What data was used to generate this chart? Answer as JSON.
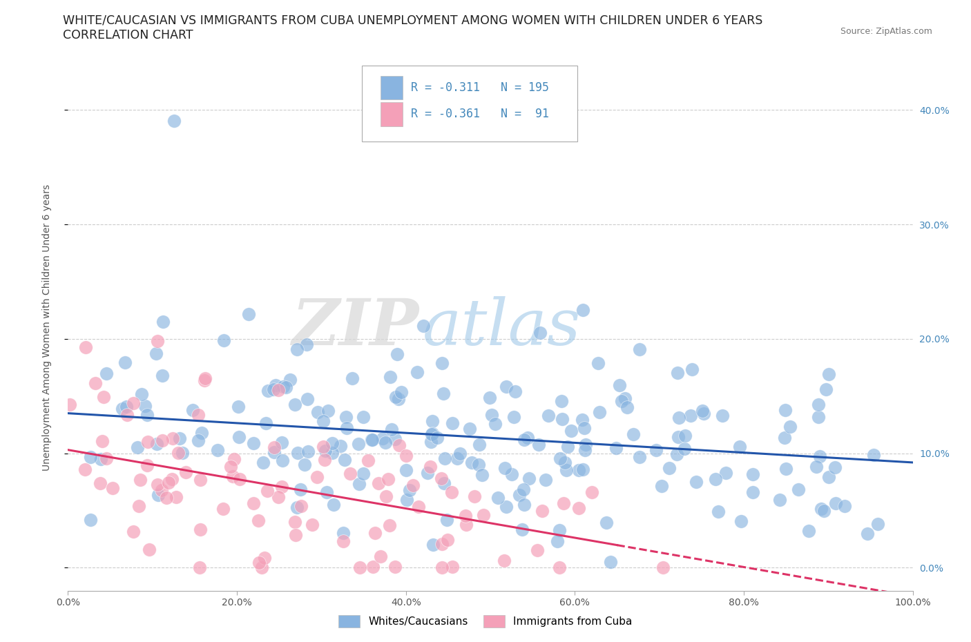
{
  "title": "WHITE/CAUCASIAN VS IMMIGRANTS FROM CUBA UNEMPLOYMENT AMONG WOMEN WITH CHILDREN UNDER 6 YEARS",
  "subtitle": "CORRELATION CHART",
  "source": "Source: ZipAtlas.com",
  "ylabel": "Unemployment Among Women with Children Under 6 years",
  "watermark_zip": "ZIP",
  "watermark_atlas": "atlas",
  "legend_labels": [
    "Whites/Caucasians",
    "Immigrants from Cuba"
  ],
  "legend_r": [
    -0.311,
    -0.361
  ],
  "legend_n": [
    195,
    91
  ],
  "blue_dot_color": "#89B4E0",
  "pink_dot_color": "#F4A0B8",
  "blue_line_color": "#2255AA",
  "pink_line_color": "#DD3366",
  "xlim": [
    0.0,
    1.0
  ],
  "ylim": [
    -0.02,
    0.44
  ],
  "yticks": [
    0.0,
    0.1,
    0.2,
    0.3,
    0.4
  ],
  "xticks": [
    0.0,
    0.2,
    0.4,
    0.6,
    0.8,
    1.0
  ],
  "title_fontsize": 12.5,
  "subtitle_fontsize": 12.5,
  "axis_label_fontsize": 10,
  "n_blue": 195,
  "n_pink": 91,
  "blue_line_x0": 0.0,
  "blue_line_y0": 0.135,
  "blue_line_x1": 1.0,
  "blue_line_y1": 0.092,
  "pink_line_x0": 0.0,
  "pink_line_y0": 0.103,
  "pink_line_x1": 1.0,
  "pink_line_y1": -0.025,
  "background_color": "#FFFFFF",
  "grid_color": "#CCCCCC",
  "right_tick_color": "#4488BB"
}
